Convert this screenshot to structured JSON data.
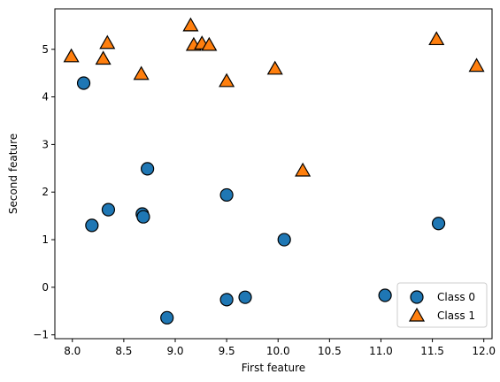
{
  "chart_data": {
    "type": "scatter",
    "xlabel": "First feature",
    "ylabel": "Second feature",
    "xlim": [
      7.83,
      12.08
    ],
    "ylim": [
      -1.08,
      5.85
    ],
    "xticks": [
      8.0,
      8.5,
      9.0,
      9.5,
      10.0,
      10.5,
      11.0,
      11.5,
      12.0
    ],
    "xtick_labels": [
      "8.0",
      "8.5",
      "9.0",
      "9.5",
      "10.0",
      "10.5",
      "11.0",
      "11.5",
      "12.0"
    ],
    "yticks": [
      -1,
      0,
      1,
      2,
      3,
      4,
      5
    ],
    "ytick_labels": [
      "−1",
      "0",
      "1",
      "2",
      "3",
      "4",
      "5"
    ],
    "grid": false,
    "legend_position": "lower right",
    "series": [
      {
        "name": "Class 0",
        "marker": "circle",
        "color": "#1f77b4",
        "points": [
          [
            8.11,
            4.29
          ],
          [
            8.19,
            1.3
          ],
          [
            8.35,
            1.63
          ],
          [
            8.68,
            1.54
          ],
          [
            8.69,
            1.48
          ],
          [
            8.73,
            2.49
          ],
          [
            8.92,
            -0.64
          ],
          [
            9.5,
            1.94
          ],
          [
            9.5,
            -0.26
          ],
          [
            9.68,
            -0.21
          ],
          [
            10.06,
            1.0
          ],
          [
            11.04,
            -0.17
          ],
          [
            11.56,
            1.34
          ]
        ]
      },
      {
        "name": "Class 1",
        "marker": "triangle",
        "color": "#ff7f0e",
        "points": [
          [
            7.99,
            4.85
          ],
          [
            8.3,
            4.8
          ],
          [
            8.34,
            5.13
          ],
          [
            8.67,
            4.48
          ],
          [
            9.15,
            5.5
          ],
          [
            9.18,
            5.09
          ],
          [
            9.26,
            5.12
          ],
          [
            9.33,
            5.09
          ],
          [
            9.5,
            4.33
          ],
          [
            9.97,
            4.59
          ],
          [
            10.24,
            2.45
          ],
          [
            11.54,
            5.21
          ],
          [
            11.93,
            4.65
          ]
        ]
      }
    ]
  }
}
